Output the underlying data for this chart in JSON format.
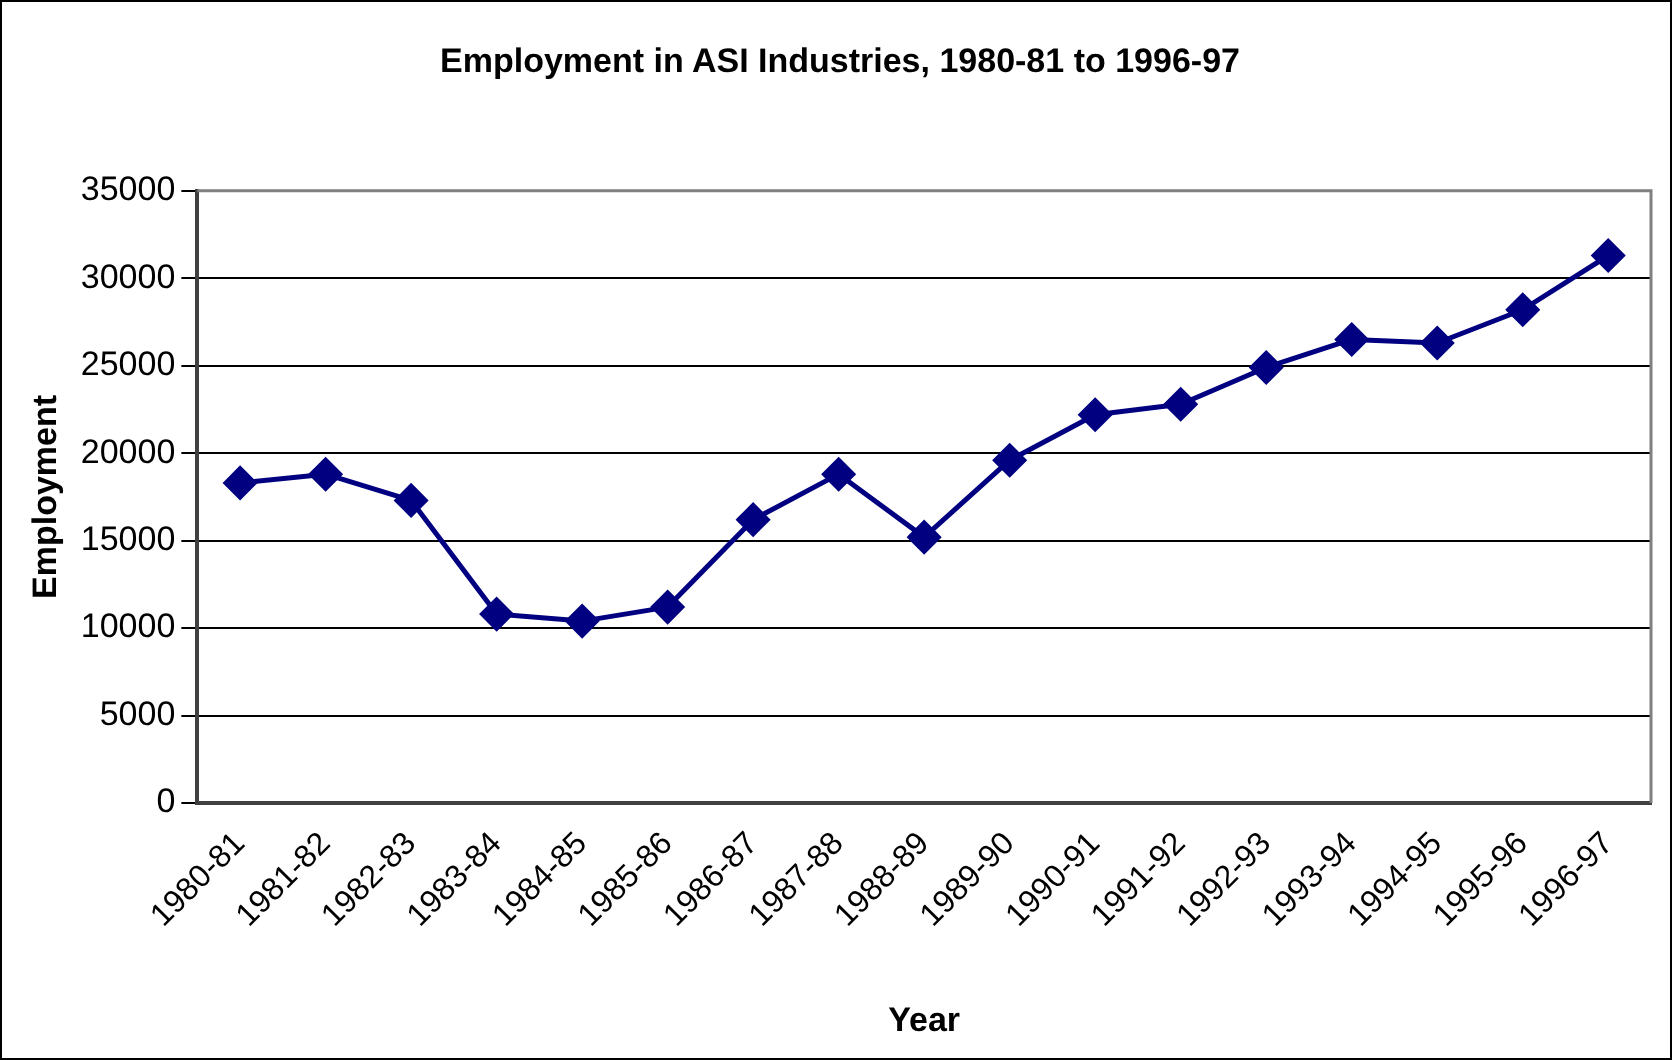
{
  "chart_data": {
    "type": "line",
    "title": "Employment in ASI Industries, 1980-81 to 1996-97",
    "xlabel": "Year",
    "ylabel": "Employment",
    "categories": [
      "1980-81",
      "1981-82",
      "1982-83",
      "1983-84",
      "1984-85",
      "1985-86",
      "1986-87",
      "1987-88",
      "1988-89",
      "1989-90",
      "1990-91",
      "1991-92",
      "1992-93",
      "1993-94",
      "1994-95",
      "1995-96",
      "1996-97"
    ],
    "values": [
      18300,
      18800,
      17300,
      10800,
      10400,
      11200,
      16200,
      18800,
      15200,
      19600,
      22200,
      22800,
      24900,
      26500,
      26300,
      28200,
      31300
    ],
    "color": "#000080",
    "marker": "diamond",
    "line_style": "solid",
    "ylim": [
      0,
      35000
    ],
    "yticks": [
      0,
      5000,
      10000,
      15000,
      20000,
      25000,
      30000,
      35000
    ],
    "grid": "y",
    "legend": false
  }
}
